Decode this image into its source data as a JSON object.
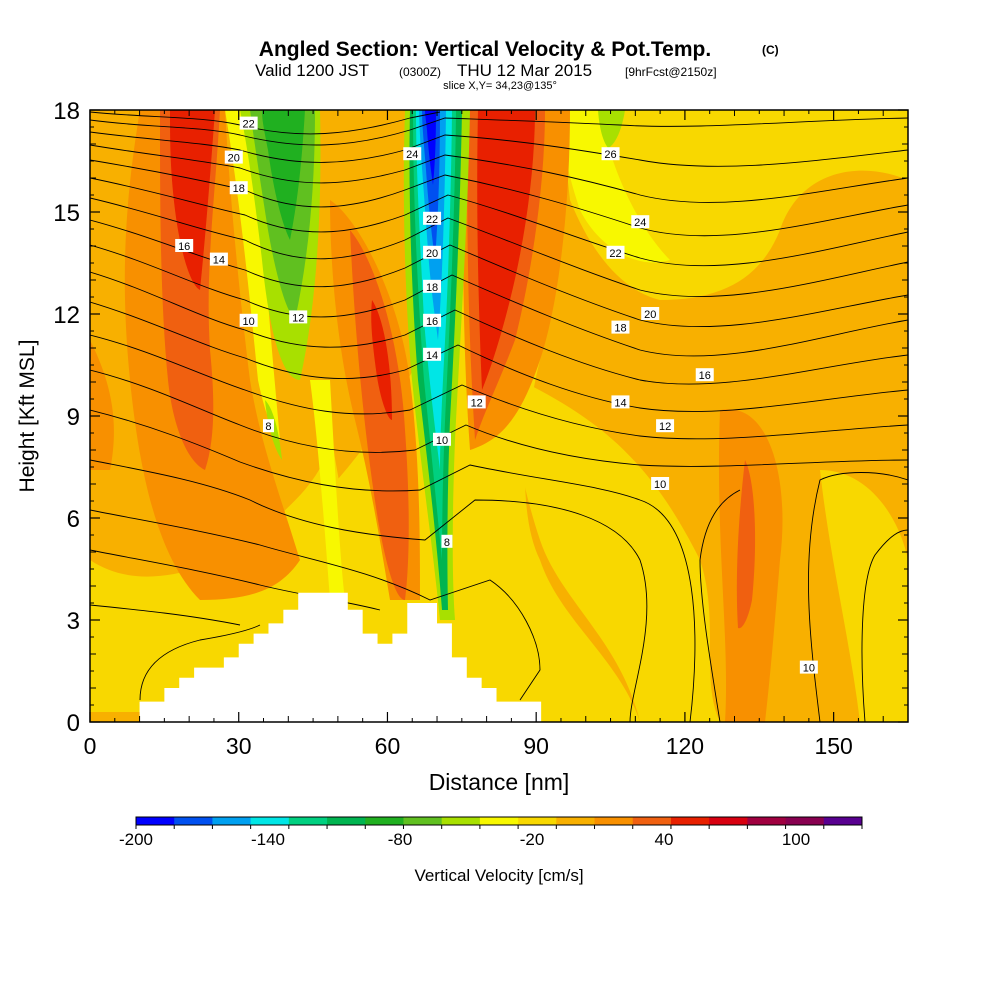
{
  "chart_data": {
    "type": "heatmap",
    "title": "Angled Section: Vertical Velocity & Pot.Temp.",
    "title_mark": "(C)",
    "subtitle": {
      "valid": "Valid 1200 JST",
      "utc": "(0300Z)",
      "date": "THU 12 Mar 2015",
      "forecast": "[9hrFcst@2150z]",
      "slice": "slice X,Y= 34,23@135°"
    },
    "xlabel": "Distance [nm]",
    "ylabel": "Height [Kft MSL]",
    "xlim": [
      0,
      165
    ],
    "ylim": [
      0,
      18
    ],
    "x_ticks": [
      "0",
      "30",
      "60",
      "90",
      "120",
      "150"
    ],
    "y_ticks": [
      "0",
      "3",
      "6",
      "9",
      "12",
      "15",
      "18"
    ],
    "colorbar": {
      "label": "Vertical Velocity [cm/s]",
      "tick_labels": [
        "-200",
        "-140",
        "-80",
        "-20",
        "40",
        "100"
      ],
      "tick_values": [
        -200,
        -140,
        -80,
        -20,
        40,
        100
      ],
      "min": -200,
      "max": 130,
      "step": 20,
      "colors": [
        "#0000ff",
        "#0050f0",
        "#00a0f0",
        "#00e6e6",
        "#00d080",
        "#00b450",
        "#20b020",
        "#60c020",
        "#a8e000",
        "#f8f800",
        "#f8d800",
        "#f8b000",
        "#f89000",
        "#f06010",
        "#e82000",
        "#d80010",
        "#a00040",
        "#880050",
        "#580090"
      ]
    },
    "terrain_top": [
      [
        10,
        0.6
      ],
      [
        15,
        0.6
      ],
      [
        15,
        1.0
      ],
      [
        18,
        1.0
      ],
      [
        18,
        1.3
      ],
      [
        21,
        1.3
      ],
      [
        21,
        1.6
      ],
      [
        27,
        1.6
      ],
      [
        27,
        1.9
      ],
      [
        30,
        1.9
      ],
      [
        30,
        2.3
      ],
      [
        33,
        2.3
      ],
      [
        33,
        2.6
      ],
      [
        36,
        2.6
      ],
      [
        36,
        2.9
      ],
      [
        39,
        2.9
      ],
      [
        39,
        3.3
      ],
      [
        42,
        3.3
      ],
      [
        42,
        3.8
      ],
      [
        52,
        3.8
      ],
      [
        52,
        3.3
      ],
      [
        55,
        3.3
      ],
      [
        55,
        2.6
      ],
      [
        58,
        2.6
      ],
      [
        58,
        2.3
      ],
      [
        61,
        2.3
      ],
      [
        61,
        2.6
      ],
      [
        64,
        2.6
      ],
      [
        64,
        3.5
      ],
      [
        70,
        3.5
      ],
      [
        70,
        2.9
      ],
      [
        73,
        2.9
      ],
      [
        73,
        1.9
      ],
      [
        76,
        1.9
      ],
      [
        76,
        1.3
      ],
      [
        79,
        1.3
      ],
      [
        79,
        1.0
      ],
      [
        82,
        1.0
      ],
      [
        82,
        0.6
      ],
      [
        91,
        0.6
      ]
    ],
    "theta_contours": [
      {
        "level": 8,
        "label_x": 36,
        "label_y": 8.7
      },
      {
        "level": 8,
        "label_x": 72,
        "label_y": 5.3
      },
      {
        "level": 10,
        "label_x": 32,
        "label_y": 11.8
      },
      {
        "level": 10,
        "label_x": 71,
        "label_y": 8.3
      },
      {
        "level": 10,
        "label_x": 115,
        "label_y": 7.0
      },
      {
        "level": 10,
        "label_x": 145,
        "label_y": 1.6
      },
      {
        "level": 12,
        "label_x": 42,
        "label_y": 11.9
      },
      {
        "level": 12,
        "label_x": 78,
        "label_y": 9.4
      },
      {
        "level": 12,
        "label_x": 116,
        "label_y": 8.7
      },
      {
        "level": 14,
        "label_x": 26,
        "label_y": 13.6
      },
      {
        "level": 14,
        "label_x": 69,
        "label_y": 10.8
      },
      {
        "level": 14,
        "label_x": 107,
        "label_y": 9.4
      },
      {
        "level": 16,
        "label_x": 19,
        "label_y": 14.0
      },
      {
        "level": 16,
        "label_x": 69,
        "label_y": 11.8
      },
      {
        "level": 16,
        "label_x": 124,
        "label_y": 10.2
      },
      {
        "level": 18,
        "label_x": 30,
        "label_y": 15.7
      },
      {
        "level": 18,
        "label_x": 69,
        "label_y": 12.8
      },
      {
        "level": 18,
        "label_x": 107,
        "label_y": 11.6
      },
      {
        "level": 20,
        "label_x": 29,
        "label_y": 16.6
      },
      {
        "level": 20,
        "label_x": 69,
        "label_y": 13.8
      },
      {
        "level": 20,
        "label_x": 113,
        "label_y": 12.0
      },
      {
        "level": 22,
        "label_x": 32,
        "label_y": 17.6
      },
      {
        "level": 22,
        "label_x": 69,
        "label_y": 14.8
      },
      {
        "level": 22,
        "label_x": 106,
        "label_y": 13.8
      },
      {
        "level": 24,
        "label_x": 65,
        "label_y": 16.7
      },
      {
        "level": 24,
        "label_x": 111,
        "label_y": 14.7
      },
      {
        "level": 26,
        "label_x": 105,
        "label_y": 16.7
      }
    ]
  }
}
